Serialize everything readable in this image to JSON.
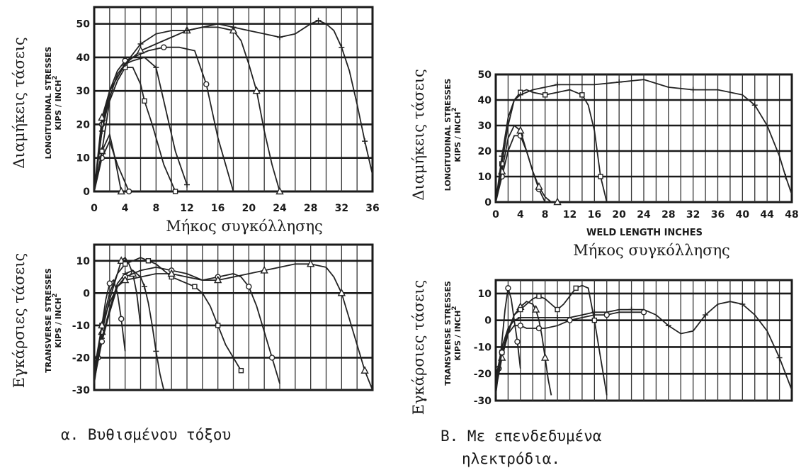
{
  "chart_data": [
    {
      "type": "line",
      "panel": "a-longitudinal",
      "ylabel_greek": "Διαμήκεις τάσεις",
      "ylabel_en": [
        "LONGITUDINAL STRESSES",
        "KIPS / INCH"
      ],
      "ylabel_sup": "2",
      "xlabel": "Μήκος συγκόλλησης",
      "xlim": [
        0,
        36
      ],
      "ylim": [
        0,
        55
      ],
      "x_ticks": [
        0,
        4,
        8,
        12,
        16,
        20,
        24,
        28,
        32,
        36
      ],
      "y_ticks": [
        0,
        10,
        20,
        30,
        40,
        50
      ],
      "series": [
        {
          "x": [
            0,
            1,
            2,
            3,
            4.5
          ],
          "y": [
            0,
            10,
            15,
            8,
            0
          ]
        },
        {
          "x": [
            0,
            1,
            2,
            2.5,
            3.5
          ],
          "y": [
            0,
            12,
            17,
            12,
            0
          ]
        },
        {
          "x": [
            0,
            1,
            2,
            3,
            4,
            5,
            6,
            6.5,
            7.5,
            9,
            10.5
          ],
          "y": [
            0,
            12,
            27,
            33,
            37,
            37,
            32,
            27,
            20,
            8,
            0
          ]
        },
        {
          "x": [
            0,
            1,
            2,
            3,
            4,
            5,
            6.5,
            8,
            9,
            10.5,
            12
          ],
          "y": [
            0,
            18,
            28,
            35,
            38,
            39,
            40,
            37,
            27,
            12,
            2
          ]
        },
        {
          "x": [
            0,
            1,
            2,
            3,
            4,
            6,
            7,
            9,
            11,
            13,
            14.5,
            16,
            18
          ],
          "y": [
            0,
            20,
            30,
            36,
            39,
            41,
            42,
            43,
            43,
            42,
            32,
            16,
            0
          ]
        },
        {
          "x": [
            0,
            1,
            2,
            4,
            6,
            8,
            10,
            12,
            14,
            16,
            18,
            19,
            20,
            21,
            22,
            23,
            24
          ],
          "y": [
            0,
            22,
            30,
            38,
            42,
            44,
            46,
            48,
            49,
            49,
            48,
            45,
            38,
            30,
            18,
            8,
            0
          ]
        },
        {
          "x": [
            0,
            1,
            2,
            4,
            6,
            8,
            10,
            12,
            14,
            16,
            18,
            20,
            22,
            24,
            26,
            28,
            29,
            30,
            31,
            32,
            33,
            34,
            35,
            36
          ],
          "y": [
            0,
            18,
            30,
            38,
            44,
            47,
            48,
            48,
            49,
            50,
            49,
            48,
            47,
            46,
            47,
            50,
            51,
            50,
            48,
            43,
            36,
            26,
            15,
            5
          ]
        }
      ]
    },
    {
      "type": "line",
      "panel": "a-transverse",
      "ylabel_greek": "Εγκάρσιες τάσεις",
      "ylabel_en": [
        "TRANSVERSE STRESSES",
        "KIPS / INCH"
      ],
      "ylabel_sup": "2",
      "xlim": [
        0,
        36
      ],
      "ylim": [
        -30,
        15
      ],
      "y_ticks": [
        -30,
        -20,
        -10,
        0,
        10
      ],
      "series": [
        {
          "x": [
            0,
            0.5,
            1,
            1.5,
            2,
            2.5,
            3,
            3.5,
            4
          ],
          "y": [
            -28,
            -20,
            -10,
            -2,
            3,
            4,
            0,
            -8,
            -18
          ]
        },
        {
          "x": [
            0,
            1,
            2,
            3,
            3.5,
            4,
            4.5,
            5,
            5.5,
            6
          ],
          "y": [
            -26,
            -12,
            -2,
            6,
            10,
            11,
            9,
            6,
            0,
            -10
          ]
        },
        {
          "x": [
            0,
            1,
            2,
            3,
            4,
            5,
            6,
            7,
            8,
            9,
            10,
            11,
            12,
            13,
            14,
            15,
            16,
            17,
            18,
            19
          ],
          "y": [
            -25,
            -10,
            0,
            6,
            9,
            10,
            11,
            10,
            9,
            7,
            5,
            4,
            3,
            2,
            0,
            -4,
            -10,
            -16,
            -20,
            -24
          ]
        },
        {
          "x": [
            0,
            1,
            2,
            3,
            4,
            5,
            6,
            6.5,
            7,
            7.5,
            8,
            8.5,
            9
          ],
          "y": [
            -27,
            -14,
            -5,
            3,
            6,
            7,
            5,
            2,
            -3,
            -10,
            -18,
            -25,
            -30
          ]
        },
        {
          "x": [
            0,
            1,
            2,
            3,
            4,
            6,
            8,
            10,
            12,
            14,
            16,
            18,
            19,
            20,
            21,
            22,
            23,
            24
          ],
          "y": [
            -27,
            -15,
            -6,
            2,
            5,
            7,
            8,
            7,
            6,
            4,
            5,
            6,
            5,
            2,
            -4,
            -12,
            -20,
            -28
          ]
        },
        {
          "x": [
            0,
            1,
            2,
            3,
            4,
            6,
            8,
            10,
            12,
            14,
            16,
            18,
            20,
            22,
            24,
            26,
            28,
            30,
            31,
            32,
            33,
            34,
            35,
            36
          ],
          "y": [
            -24,
            -10,
            -3,
            2,
            4,
            5,
            6,
            6,
            5,
            4,
            4,
            5,
            6,
            7,
            8,
            9,
            9,
            8,
            5,
            0,
            -8,
            -16,
            -24,
            -30
          ]
        }
      ]
    },
    {
      "type": "line",
      "panel": "b-longitudinal",
      "ylabel_greek": "Διαμήκεις τάσεις",
      "ylabel_en": [
        "LONGITUDINAL STRESSES",
        "KIPS / INCH"
      ],
      "ylabel_sup": "2",
      "xlabel": "WELD LENGTH INCHES",
      "xlabel_greek": "Μήκος συγκόλλησης",
      "xlim": [
        0,
        48
      ],
      "ylim": [
        0,
        50
      ],
      "x_ticks": [
        0,
        4,
        8,
        12,
        16,
        20,
        24,
        28,
        32,
        36,
        40,
        44,
        48
      ],
      "y_ticks": [
        0,
        10,
        20,
        30,
        40,
        50
      ],
      "series": [
        {
          "x": [
            0,
            1,
            2,
            3,
            4,
            5,
            6,
            7,
            8
          ],
          "y": [
            0,
            10,
            20,
            26,
            26,
            20,
            12,
            5,
            0
          ]
        },
        {
          "x": [
            0,
            1,
            2,
            3,
            4,
            5,
            6,
            7,
            8,
            9,
            10
          ],
          "y": [
            0,
            12,
            25,
            30,
            28,
            20,
            12,
            6,
            2,
            0,
            0
          ]
        },
        {
          "x": [
            0,
            1,
            2,
            3,
            4,
            5,
            6,
            8,
            10,
            12,
            14,
            15,
            16,
            17,
            18
          ],
          "y": [
            0,
            15,
            30,
            40,
            43,
            44,
            43,
            42,
            43,
            44,
            42,
            38,
            28,
            10,
            0
          ]
        },
        {
          "x": [
            0,
            1,
            2,
            3,
            4,
            6,
            8,
            10,
            12,
            16,
            20,
            24,
            28,
            32,
            36,
            40,
            42,
            44,
            46,
            47,
            48
          ],
          "y": [
            0,
            18,
            33,
            40,
            42,
            44,
            45,
            46,
            46,
            46,
            47,
            48,
            45,
            44,
            44,
            42,
            38,
            30,
            18,
            10,
            3
          ]
        }
      ]
    },
    {
      "type": "line",
      "panel": "b-transverse",
      "ylabel_greek": "Εγκάρσιες τάσεις",
      "ylabel_en": [
        "TRANSVERSE STRESSES",
        "KIPS / INCH"
      ],
      "ylabel_sup": "2",
      "xlim": [
        0,
        48
      ],
      "ylim": [
        -30,
        15
      ],
      "y_ticks": [
        -30,
        -20,
        -10,
        0,
        10
      ],
      "series": [
        {
          "x": [
            0,
            0.5,
            1,
            1.5,
            2,
            2.5,
            3,
            3.5,
            4
          ],
          "y": [
            -28,
            -18,
            -8,
            4,
            12,
            8,
            0,
            -8,
            -18
          ]
        },
        {
          "x": [
            0,
            1,
            2,
            3,
            4,
            5,
            6,
            6.5,
            7,
            7.5,
            8,
            8.5,
            9
          ],
          "y": [
            -26,
            -14,
            -5,
            2,
            5,
            7,
            6,
            4,
            0,
            -6,
            -14,
            -22,
            -28
          ]
        },
        {
          "x": [
            0,
            1,
            2,
            3,
            4,
            5,
            6,
            7,
            8,
            9,
            10,
            11,
            12,
            13,
            14,
            15,
            16,
            17,
            18
          ],
          "y": [
            -25,
            -12,
            -4,
            2,
            4,
            6,
            8,
            9,
            8,
            6,
            4,
            6,
            9,
            12,
            13,
            12,
            0,
            -14,
            -28
          ]
        },
        {
          "x": [
            0,
            1,
            2,
            3,
            4,
            6,
            8,
            10,
            12,
            14,
            16,
            18,
            20,
            22,
            24,
            26,
            28,
            30,
            32,
            34,
            36,
            38,
            40,
            42,
            44,
            46,
            48
          ],
          "y": [
            -22,
            -10,
            -3,
            0,
            1,
            1,
            1,
            1,
            1,
            2,
            3,
            3,
            4,
            4,
            4,
            2,
            -2,
            -5,
            -4,
            2,
            6,
            7,
            6,
            2,
            -4,
            -14,
            -26
          ]
        },
        {
          "x": [
            0,
            1,
            2,
            3,
            4,
            5,
            6,
            7,
            8,
            10,
            12,
            14,
            16,
            18,
            20,
            22,
            24
          ],
          "y": [
            -24,
            -12,
            -5,
            -2,
            -2,
            -3,
            -3,
            -3,
            -3,
            -2,
            0,
            1,
            2,
            2,
            3,
            3,
            3
          ]
        }
      ]
    }
  ],
  "captions": {
    "a": "α. Βυθισμένου τόξου",
    "b_line1": "Β. Με επενδεδυμένα",
    "b_line2": "ηλεκτρόδια."
  }
}
